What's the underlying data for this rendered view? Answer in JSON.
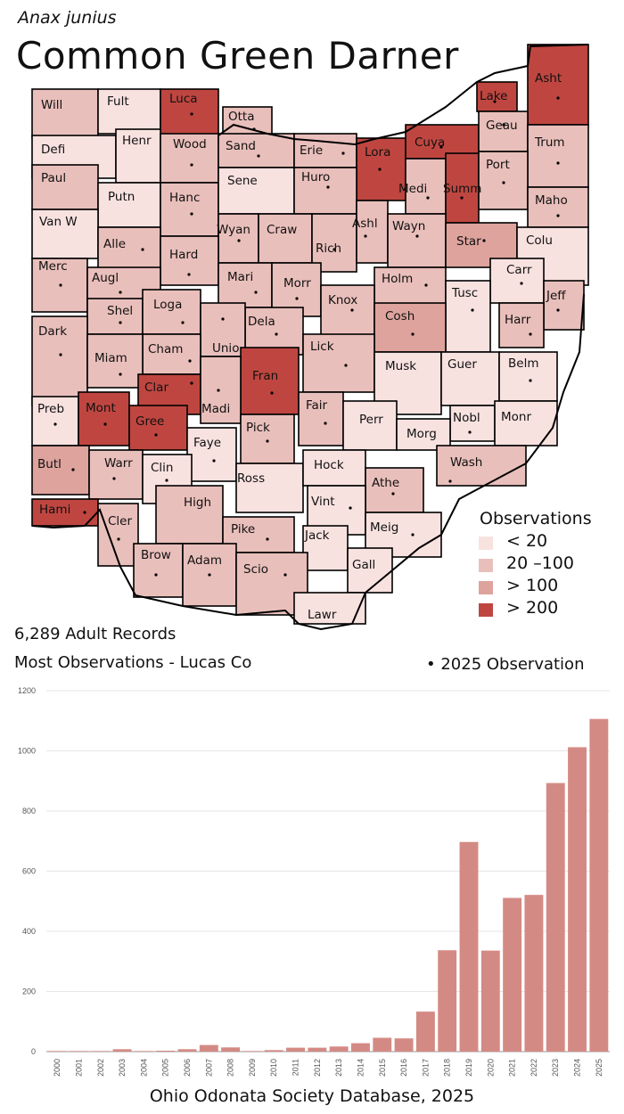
{
  "header": {
    "species": "Anax junius",
    "title": "Common Green Darner"
  },
  "colors": {
    "lt20": "#f8e2e0",
    "c20_100": "#e9bfbb",
    "gt100": "#dea39d",
    "gt200": "#bf4640",
    "bar": "#d48a84",
    "county_stroke": "#000000"
  },
  "legend": {
    "title": "Observations",
    "items": [
      {
        "label": "< 20",
        "class": "lt20"
      },
      {
        "label": "20 –100",
        "class": "c20_100"
      },
      {
        "label": "> 100",
        "class": "gt100"
      },
      {
        "label": "> 200",
        "class": "gt200"
      }
    ]
  },
  "stats": {
    "records": "6,289 Adult Records",
    "most": "Most Observations - Lucas Co",
    "obs2025": "• 2025  Observation"
  },
  "counties": [
    {
      "name": "Will",
      "class": "c20_100",
      "dot": false
    },
    {
      "name": "Fult",
      "class": "lt20",
      "dot": false
    },
    {
      "name": "Luca",
      "class": "gt200",
      "dot": true
    },
    {
      "name": "Otta",
      "class": "c20_100",
      "dot": true
    },
    {
      "name": "Lake",
      "class": "gt200",
      "dot": true
    },
    {
      "name": "Asht",
      "class": "gt200",
      "dot": true
    },
    {
      "name": "Defi",
      "class": "lt20",
      "dot": false
    },
    {
      "name": "Henr",
      "class": "lt20",
      "dot": false
    },
    {
      "name": "Wood",
      "class": "c20_100",
      "dot": true
    },
    {
      "name": "Sand",
      "class": "c20_100",
      "dot": true
    },
    {
      "name": "Erie",
      "class": "c20_100",
      "dot": true
    },
    {
      "name": "Lora",
      "class": "gt200",
      "dot": true
    },
    {
      "name": "Cuya",
      "class": "gt200",
      "dot": true
    },
    {
      "name": "Geau",
      "class": "c20_100",
      "dot": true
    },
    {
      "name": "Trum",
      "class": "c20_100",
      "dot": true
    },
    {
      "name": "Paul",
      "class": "c20_100",
      "dot": false
    },
    {
      "name": "Putn",
      "class": "lt20",
      "dot": false
    },
    {
      "name": "Hanc",
      "class": "c20_100",
      "dot": true
    },
    {
      "name": "Sene",
      "class": "lt20",
      "dot": false
    },
    {
      "name": "Huro",
      "class": "c20_100",
      "dot": true
    },
    {
      "name": "Medi",
      "class": "c20_100",
      "dot": true
    },
    {
      "name": "Summ",
      "class": "gt200",
      "dot": true
    },
    {
      "name": "Port",
      "class": "c20_100",
      "dot": true
    },
    {
      "name": "Maho",
      "class": "c20_100",
      "dot": true
    },
    {
      "name": "Van W",
      "class": "lt20",
      "dot": false
    },
    {
      "name": "Alle",
      "class": "c20_100",
      "dot": true
    },
    {
      "name": "Wyan",
      "class": "c20_100",
      "dot": true
    },
    {
      "name": "Craw",
      "class": "c20_100",
      "dot": false
    },
    {
      "name": "Rich",
      "class": "c20_100",
      "dot": true
    },
    {
      "name": "Ashl",
      "class": "c20_100",
      "dot": true
    },
    {
      "name": "Wayn",
      "class": "c20_100",
      "dot": true
    },
    {
      "name": "Star",
      "class": "gt100",
      "dot": true
    },
    {
      "name": "Colu",
      "class": "lt20",
      "dot": false
    },
    {
      "name": "Hard",
      "class": "c20_100",
      "dot": true
    },
    {
      "name": "Merc",
      "class": "c20_100",
      "dot": true
    },
    {
      "name": "Augl",
      "class": "c20_100",
      "dot": true
    },
    {
      "name": "Mari",
      "class": "c20_100",
      "dot": true
    },
    {
      "name": "Morr",
      "class": "c20_100",
      "dot": true
    },
    {
      "name": "Holm",
      "class": "c20_100",
      "dot": true
    },
    {
      "name": "Carr",
      "class": "lt20",
      "dot": true
    },
    {
      "name": "Tusc",
      "class": "lt20",
      "dot": true
    },
    {
      "name": "Jeff",
      "class": "c20_100",
      "dot": true
    },
    {
      "name": "Shel",
      "class": "c20_100",
      "dot": true
    },
    {
      "name": "Loga",
      "class": "c20_100",
      "dot": true
    },
    {
      "name": "Knox",
      "class": "c20_100",
      "dot": true
    },
    {
      "name": "Dela",
      "class": "c20_100",
      "dot": true
    },
    {
      "name": "Cosh",
      "class": "gt100",
      "dot": true
    },
    {
      "name": "Harr",
      "class": "c20_100",
      "dot": true
    },
    {
      "name": "Dark",
      "class": "c20_100",
      "dot": true
    },
    {
      "name": "Unio",
      "class": "c20_100",
      "dot": true
    },
    {
      "name": "Cham",
      "class": "c20_100",
      "dot": true
    },
    {
      "name": "Miam",
      "class": "c20_100",
      "dot": true
    },
    {
      "name": "Lick",
      "class": "c20_100",
      "dot": true
    },
    {
      "name": "Musk",
      "class": "lt20",
      "dot": false
    },
    {
      "name": "Guer",
      "class": "lt20",
      "dot": false
    },
    {
      "name": "Belm",
      "class": "lt20",
      "dot": true
    },
    {
      "name": "Fran",
      "class": "gt200",
      "dot": true
    },
    {
      "name": "Clar",
      "class": "gt200",
      "dot": true
    },
    {
      "name": "Madi",
      "class": "c20_100",
      "dot": true
    },
    {
      "name": "Preb",
      "class": "lt20",
      "dot": true
    },
    {
      "name": "Mont",
      "class": "gt200",
      "dot": true
    },
    {
      "name": "Gree",
      "class": "gt200",
      "dot": true
    },
    {
      "name": "Fair",
      "class": "c20_100",
      "dot": true
    },
    {
      "name": "Perr",
      "class": "lt20",
      "dot": false
    },
    {
      "name": "Nobl",
      "class": "lt20",
      "dot": true
    },
    {
      "name": "Monr",
      "class": "lt20",
      "dot": false
    },
    {
      "name": "Morg",
      "class": "lt20",
      "dot": false
    },
    {
      "name": "Pick",
      "class": "c20_100",
      "dot": true
    },
    {
      "name": "Faye",
      "class": "lt20",
      "dot": true
    },
    {
      "name": "Butl",
      "class": "gt100",
      "dot": true
    },
    {
      "name": "Warr",
      "class": "c20_100",
      "dot": true
    },
    {
      "name": "Clin",
      "class": "lt20",
      "dot": true
    },
    {
      "name": "Ross",
      "class": "lt20",
      "dot": false
    },
    {
      "name": "Hock",
      "class": "lt20",
      "dot": false
    },
    {
      "name": "Wash",
      "class": "c20_100",
      "dot": true
    },
    {
      "name": "Athe",
      "class": "c20_100",
      "dot": true
    },
    {
      "name": "Vint",
      "class": "lt20",
      "dot": true
    },
    {
      "name": "High",
      "class": "c20_100",
      "dot": false
    },
    {
      "name": "Hami",
      "class": "gt200",
      "dot": true
    },
    {
      "name": "Cler",
      "class": "c20_100",
      "dot": true
    },
    {
      "name": "Meig",
      "class": "lt20",
      "dot": true
    },
    {
      "name": "Pike",
      "class": "c20_100",
      "dot": true
    },
    {
      "name": "Jack",
      "class": "lt20",
      "dot": false
    },
    {
      "name": "Brow",
      "class": "c20_100",
      "dot": true
    },
    {
      "name": "Adam",
      "class": "c20_100",
      "dot": true
    },
    {
      "name": "Scio",
      "class": "c20_100",
      "dot": true
    },
    {
      "name": "Gall",
      "class": "lt20",
      "dot": false
    },
    {
      "name": "Lawr",
      "class": "lt20",
      "dot": false
    }
  ],
  "chart_data": {
    "type": "bar",
    "categories": [
      "2000",
      "2001",
      "2002",
      "2003",
      "2004",
      "2005",
      "2006",
      "2007",
      "2008",
      "2009",
      "2010",
      "2011",
      "2012",
      "2013",
      "2014",
      "2015",
      "2016",
      "2017",
      "2018",
      "2019",
      "2020",
      "2021",
      "2022",
      "2023",
      "2024",
      "2025"
    ],
    "values": [
      2,
      2,
      2,
      8,
      2,
      3,
      8,
      22,
      14,
      2,
      5,
      13,
      13,
      17,
      28,
      46,
      44,
      133,
      337,
      697,
      336,
      511,
      521,
      893,
      1012,
      1106
    ],
    "title": "",
    "xlabel": "",
    "ylabel": "",
    "ylim": [
      0,
      1200
    ],
    "yticks": [
      0,
      200,
      400,
      600,
      800,
      1000,
      1200
    ],
    "grid": true
  },
  "footer": "Ohio Odonata Society Database, 2025"
}
